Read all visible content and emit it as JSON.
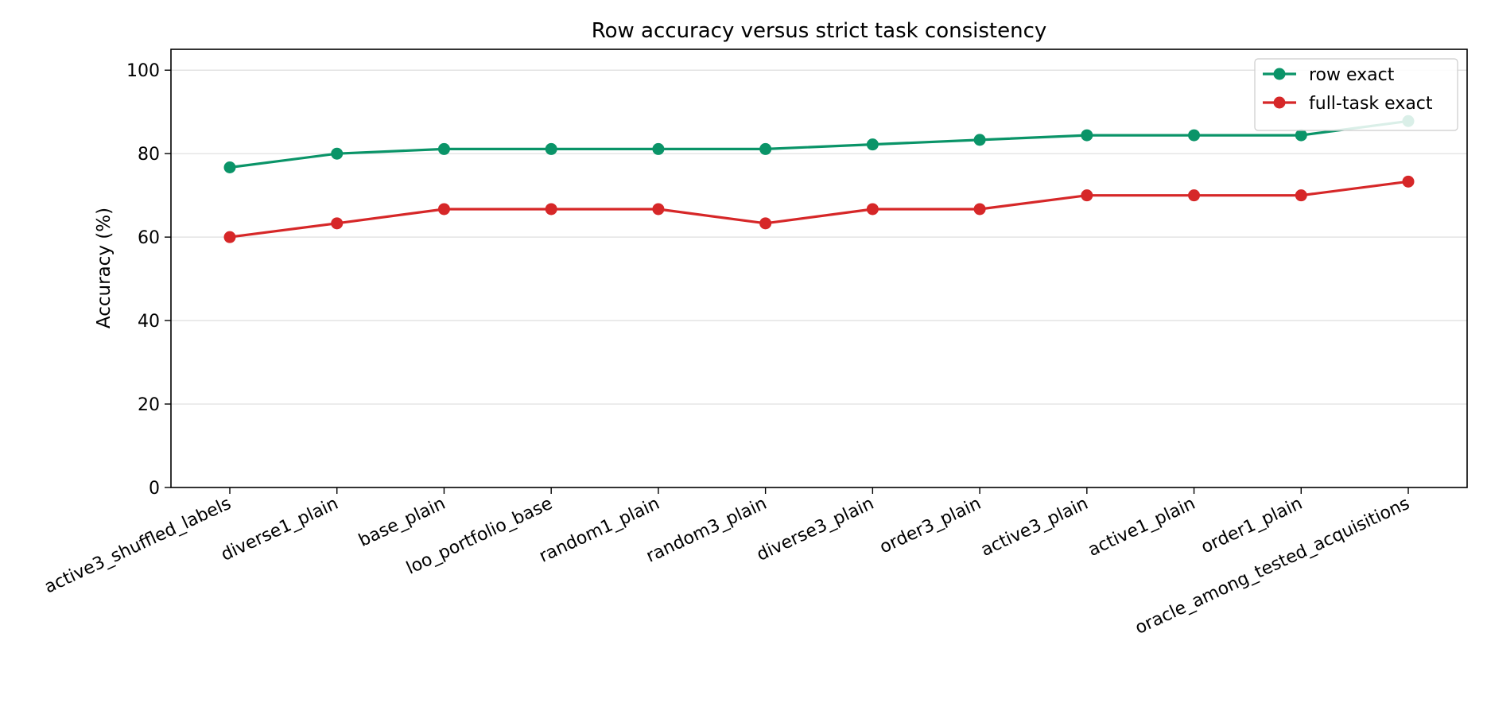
{
  "chart_data": {
    "type": "line",
    "title": "Row accuracy versus strict task consistency",
    "xlabel": "",
    "ylabel": "Accuracy (%)",
    "ylim": [
      0,
      105
    ],
    "yticks": [
      0,
      20,
      40,
      60,
      80,
      100
    ],
    "grid": "horizontal",
    "legend_position": "top-right",
    "categories": [
      "active3_shuffled_labels",
      "diverse1_plain",
      "base_plain",
      "loo_portfolio_base",
      "random1_plain",
      "random3_plain",
      "diverse3_plain",
      "order3_plain",
      "active3_plain",
      "active1_plain",
      "order1_plain",
      "oracle_among_tested_acquisitions"
    ],
    "series": [
      {
        "name": "row exact",
        "color": "#0a9468",
        "values": [
          76.7,
          80.0,
          81.1,
          81.1,
          81.1,
          81.1,
          82.2,
          83.3,
          84.4,
          84.4,
          84.4,
          87.8
        ]
      },
      {
        "name": "full-task exact",
        "color": "#d62728",
        "values": [
          60.0,
          63.3,
          66.7,
          66.7,
          66.7,
          63.3,
          66.7,
          66.7,
          70.0,
          70.0,
          70.0,
          73.3
        ]
      }
    ]
  }
}
